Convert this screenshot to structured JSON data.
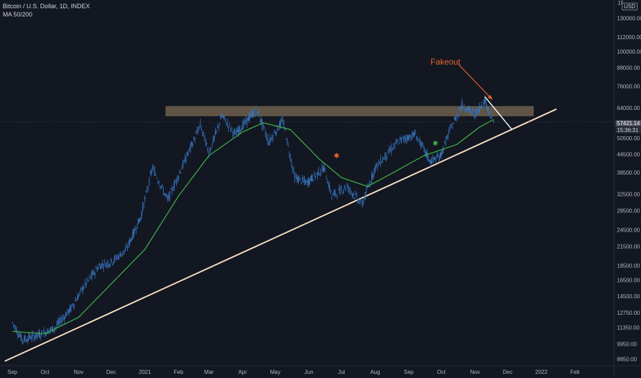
{
  "header": {
    "title": "Bitcoin / U.S. Dollar, 1D, INDEX",
    "indicator": "MA 50/200",
    "currency": "USD",
    "top_cut_label": "15"
  },
  "price_tags": {
    "last_price": "57421.14",
    "countdown": "15:36:31"
  },
  "annotation": {
    "text": "Fakeout",
    "color": "#e8632a"
  },
  "colors": {
    "background": "#131722",
    "candles": "#3a78c2",
    "ma50": "#3cb043",
    "trendline": "#f7e1c3",
    "resistance_zone": "#7a6a52",
    "text": "#b2b5be"
  },
  "chart_data": {
    "type": "line",
    "scale": "log",
    "symbol": "BTCUSD",
    "x_ticks": [
      "Sep",
      "Oct",
      "Nov",
      "Dec",
      "2021",
      "Feb",
      "Mar",
      "Apr",
      "May",
      "Jun",
      "Jul",
      "Aug",
      "Sep",
      "Oct",
      "Nov",
      "Dec",
      "2022",
      "Feb"
    ],
    "y_ticks": [
      8850,
      9950,
      11350,
      12750,
      14500,
      16500,
      18500,
      21500,
      24500,
      28500,
      32500,
      38500,
      44500,
      50500,
      64000,
      76000,
      88000,
      100000,
      112000,
      130000
    ],
    "y_range": [
      8400,
      150000
    ],
    "series": [
      {
        "type": "candles-approx",
        "points": [
          [
            "2020-09-01",
            11800
          ],
          [
            "2020-09-10",
            10300
          ],
          [
            "2020-09-25",
            10700
          ],
          [
            "2020-10-10",
            11300
          ],
          [
            "2020-10-25",
            13200
          ],
          [
            "2020-11-05",
            15500
          ],
          [
            "2020-11-20",
            18500
          ],
          [
            "2020-12-01",
            19000
          ],
          [
            "2020-12-15",
            21000
          ],
          [
            "2020-12-28",
            27000
          ],
          [
            "2021-01-08",
            40000
          ],
          [
            "2021-01-22",
            31000
          ],
          [
            "2021-02-10",
            45000
          ],
          [
            "2021-02-21",
            56000
          ],
          [
            "2021-03-01",
            45000
          ],
          [
            "2021-03-13",
            60000
          ],
          [
            "2021-03-25",
            52000
          ],
          [
            "2021-04-14",
            63500
          ],
          [
            "2021-04-25",
            49000
          ],
          [
            "2021-05-08",
            58000
          ],
          [
            "2021-05-19",
            37000
          ],
          [
            "2021-05-30",
            35500
          ],
          [
            "2021-06-15",
            40000
          ],
          [
            "2021-06-22",
            32000
          ],
          [
            "2021-07-06",
            34500
          ],
          [
            "2021-07-20",
            30000
          ],
          [
            "2021-08-01",
            40000
          ],
          [
            "2021-08-23",
            49500
          ],
          [
            "2021-09-07",
            52000
          ],
          [
            "2021-09-21",
            42000
          ],
          [
            "2021-09-30",
            43800
          ],
          [
            "2021-10-10",
            55000
          ],
          [
            "2021-10-20",
            65500
          ],
          [
            "2021-11-01",
            61000
          ],
          [
            "2021-11-10",
            68000
          ],
          [
            "2021-11-18",
            57400
          ]
        ]
      },
      {
        "name": "MA 50",
        "points": [
          [
            "2020-09-01",
            11000
          ],
          [
            "2020-10-01",
            10800
          ],
          [
            "2020-11-01",
            12300
          ],
          [
            "2020-12-01",
            16000
          ],
          [
            "2021-01-01",
            21000
          ],
          [
            "2021-02-01",
            32000
          ],
          [
            "2021-03-01",
            44000
          ],
          [
            "2021-04-01",
            53000
          ],
          [
            "2021-04-20",
            57000
          ],
          [
            "2021-05-15",
            54000
          ],
          [
            "2021-06-10",
            43000
          ],
          [
            "2021-07-01",
            37000
          ],
          [
            "2021-07-25",
            34500
          ],
          [
            "2021-08-15",
            38000
          ],
          [
            "2021-09-15",
            44000
          ],
          [
            "2021-10-15",
            48000
          ],
          [
            "2021-11-05",
            55000
          ],
          [
            "2021-11-18",
            58500
          ]
        ]
      }
    ],
    "resistance_zone": {
      "from": "2021-01-20",
      "to": "2021-12-25",
      "low": 60000,
      "high": 65000
    },
    "trendline": {
      "from": [
        "2020-08-25",
        8700
      ],
      "to": [
        "2022-01-15",
        63500
      ]
    },
    "fakeout_line": {
      "from": [
        "2021-11-10",
        70000
      ],
      "to": [
        "2021-12-05",
        54000
      ]
    },
    "markers": [
      {
        "date": "2021-06-26",
        "value": 44000,
        "color": "#e8632a"
      },
      {
        "date": "2021-09-25",
        "value": 48500,
        "color": "#3cb043"
      }
    ]
  }
}
